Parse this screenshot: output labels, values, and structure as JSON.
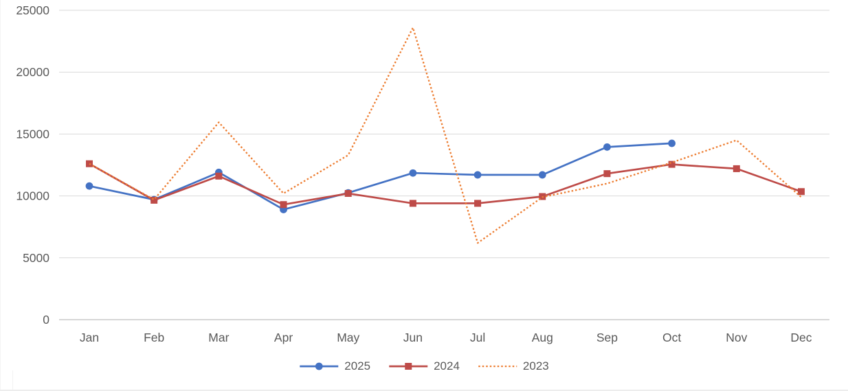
{
  "page": {
    "background": "#ffffff"
  },
  "chart_data": {
    "type": "line",
    "title": "",
    "xlabel": "",
    "ylabel": "",
    "categories": [
      "Jan",
      "Feb",
      "Mar",
      "Apr",
      "May",
      "Jun",
      "Jul",
      "Aug",
      "Sep",
      "Oct",
      "Nov",
      "Dec"
    ],
    "series": [
      {
        "name": "2025",
        "color": "#4472C4",
        "marker": "circle",
        "line_style": "solid",
        "values": [
          10800,
          9700,
          11900,
          8900,
          10250,
          11850,
          11700,
          11700,
          13950,
          14250,
          null,
          null
        ]
      },
      {
        "name": "2024",
        "color": "#BE4B48",
        "marker": "square",
        "line_style": "solid",
        "values": [
          12600,
          9650,
          11600,
          9300,
          10200,
          9400,
          9400,
          9950,
          11800,
          12550,
          12200,
          10350
        ]
      },
      {
        "name": "2023",
        "color": "#ED7D31",
        "marker": "none",
        "line_style": "dotted",
        "values": [
          12600,
          9700,
          15950,
          10200,
          13300,
          23600,
          6200,
          9900,
          11000,
          12700,
          14500,
          9900
        ]
      }
    ],
    "ylim": [
      0,
      25000
    ],
    "ytick_interval": 5000,
    "yticks": [
      "0",
      "5000",
      "10000",
      "15000",
      "20000",
      "25000"
    ],
    "grid": true,
    "legend_position": "bottom",
    "legend_labels": [
      "2025",
      "2024",
      "2023"
    ],
    "gridline_color": "#d9d9d9",
    "axis_line_color": "#c9c9c9",
    "axis_label_color": "#595959"
  }
}
